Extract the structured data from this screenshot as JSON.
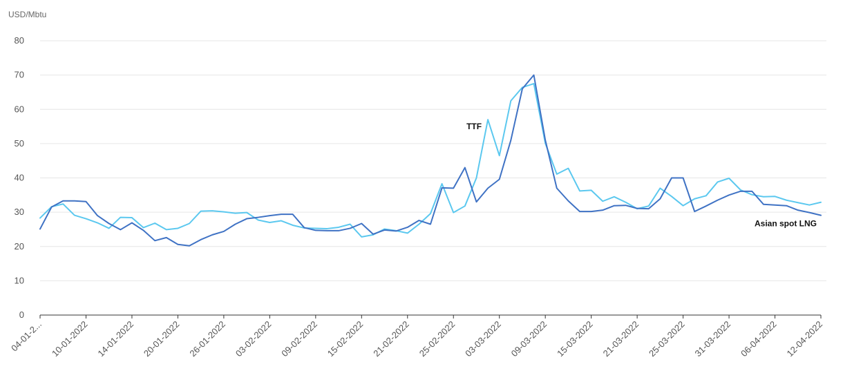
{
  "chart_data": {
    "type": "line",
    "ylabel": "USD/Mbtu",
    "ylim": [
      0,
      80
    ],
    "yticks": [
      0,
      10,
      20,
      30,
      40,
      50,
      60,
      70,
      80
    ],
    "grid": "horizontal",
    "x_tick_labels": [
      "04-01-2...",
      "10-01-2022",
      "14-01-2022",
      "20-01-2022",
      "26-01-2022",
      "03-02-2022",
      "09-02-2022",
      "15-02-2022",
      "21-02-2022",
      "25-02-2022",
      "03-03-2022",
      "09-03-2022",
      "15-03-2022",
      "21-03-2022",
      "25-03-2022",
      "31-03-2022",
      "06-04-2022",
      "12-04-2022"
    ],
    "colors": {
      "ttf": "#5bc8ef",
      "asian_lng": "#3f72c4",
      "grid": "#e6e6e6",
      "axis": "#333333"
    },
    "series": [
      {
        "name": "TTF",
        "values": [
          28.3,
          31.6,
          32.4,
          29.1,
          28.1,
          26.9,
          25.3,
          28.5,
          28.4,
          25.5,
          26.8,
          24.9,
          25.3,
          26.7,
          30.3,
          30.4,
          30.1,
          29.7,
          29.9,
          27.7,
          27.0,
          27.5,
          26.2,
          25.4,
          25.3,
          25.2,
          25.6,
          26.5,
          22.8,
          23.4,
          25.1,
          24.6,
          23.9,
          26.5,
          29.6,
          38.3,
          29.9,
          31.8,
          40.0,
          57.0,
          46.5,
          62.5,
          66.4,
          67.5,
          50.1,
          41.1,
          42.8,
          36.2,
          36.4,
          33.2,
          34.5,
          32.9,
          31.0,
          31.8,
          37.0,
          34.6,
          31.9,
          33.9,
          34.8,
          38.8,
          39.9,
          36.5,
          35.1,
          34.5,
          34.6,
          33.5,
          32.8,
          32.1,
          32.9
        ]
      },
      {
        "name": "Asian spot LNG",
        "values": [
          25.1,
          31.5,
          33.3,
          33.3,
          33.1,
          29.0,
          26.7,
          24.9,
          26.9,
          24.7,
          21.7,
          22.6,
          20.6,
          20.2,
          22.0,
          23.4,
          24.4,
          26.5,
          28.1,
          28.5,
          29.0,
          29.4,
          29.4,
          25.5,
          24.7,
          24.6,
          24.6,
          25.3,
          26.7,
          23.6,
          24.8,
          24.5,
          25.6,
          27.6,
          26.5,
          37.1,
          37.0,
          43.0,
          33.0,
          37.0,
          39.6,
          51.0,
          66.0,
          70.0,
          51.0,
          37.0,
          33.3,
          30.2,
          30.2,
          30.6,
          31.9,
          32.0,
          31.1,
          31.0,
          33.9,
          40.0,
          40.0,
          30.2,
          31.8,
          33.5,
          35.0,
          36.1,
          36.1,
          32.3,
          32.1,
          31.9,
          30.6,
          29.9,
          29.1
        ]
      }
    ],
    "annotations": [
      {
        "text": "TTF",
        "series": "TTF",
        "at_index": 39
      },
      {
        "text": "Asian spot LNG",
        "series": "Asian spot LNG",
        "at_index": 68
      }
    ]
  }
}
